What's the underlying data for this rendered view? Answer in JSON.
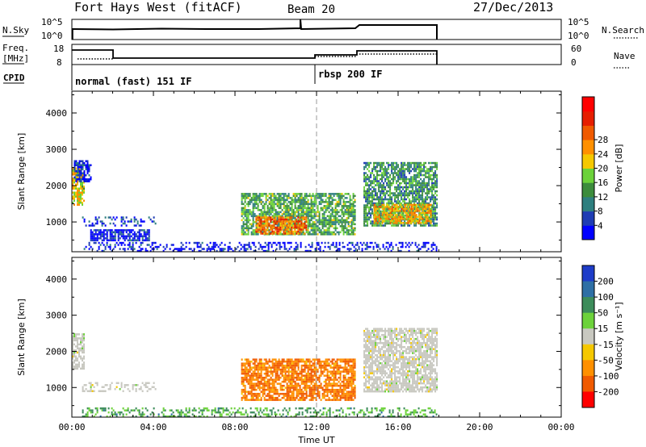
{
  "header": {
    "title": "Fort Hays West (fitACF)",
    "beam": "Beam 20",
    "date": "27/Dec/2013"
  },
  "panels": {
    "nsky_label": "N.Sky",
    "nsearch_label": "N.Search",
    "nsky_ticks": [
      "10^5",
      "10^0"
    ],
    "nsearch_ticks": [
      "10^5",
      "10^0"
    ],
    "freq_label_1": "Freq.",
    "freq_label_2": "[MHz]",
    "freq_ticks": [
      "18",
      "8"
    ],
    "nave_label": "Nave",
    "nave_ticks": [
      "60",
      "0"
    ],
    "cpid_label": "CPID",
    "cpid_1": "normal (fast) 151 IF",
    "cpid_2": "rbsp 200 IF"
  },
  "chart_data": [
    {
      "type": "heatmap",
      "title": "",
      "xlabel": "Time UT",
      "ylabel": "Slant Range [km]",
      "xlim": [
        0,
        24
      ],
      "ylim": [
        180,
        4600
      ],
      "x_ticks": [
        "00:00",
        "04:00",
        "08:00",
        "12:00",
        "16:00",
        "20:00",
        "00:00"
      ],
      "y_ticks": [
        "1000",
        "2000",
        "3000",
        "4000"
      ],
      "colorbar_label": "Power [dB]",
      "colorbar_ticks": [
        "4",
        "8",
        "12",
        "16",
        "20",
        "24",
        "28"
      ],
      "colorbar_colors": [
        "#0000ff",
        "#1e3cb4",
        "#2e7f7f",
        "#3c8c3c",
        "#6cd23a",
        "#f5c800",
        "#ff9000",
        "#f05a00",
        "#e61e00",
        "#ff0000"
      ],
      "regions": [
        {
          "t0": 0.0,
          "t1": 0.6,
          "r0": 1500,
          "r1": 2500,
          "level": 0.55
        },
        {
          "t0": 0.1,
          "t1": 0.9,
          "r0": 2100,
          "r1": 2700,
          "level": 0.05
        },
        {
          "t0": 0.5,
          "t1": 4.1,
          "r0": 900,
          "r1": 1150,
          "level": 0.1
        },
        {
          "t0": 0.9,
          "t1": 3.8,
          "r0": 500,
          "r1": 800,
          "level": 0.03
        },
        {
          "t0": 8.3,
          "t1": 13.9,
          "r0": 650,
          "r1": 1800,
          "level": 0.35
        },
        {
          "t0": 9.0,
          "t1": 11.5,
          "r0": 700,
          "r1": 1150,
          "level": 0.75
        },
        {
          "t0": 14.3,
          "t1": 17.9,
          "r0": 900,
          "r1": 2650,
          "level": 0.3
        },
        {
          "t0": 14.8,
          "t1": 17.6,
          "r0": 1000,
          "r1": 1500,
          "level": 0.6
        },
        {
          "t0": 0.5,
          "t1": 17.9,
          "r0": 200,
          "r1": 450,
          "level": 0.02
        }
      ]
    },
    {
      "type": "heatmap",
      "title": "",
      "xlabel": "Time UT",
      "ylabel": "Slant Range [km]",
      "xlim": [
        0,
        24
      ],
      "ylim": [
        180,
        4600
      ],
      "x_ticks": [
        "00:00",
        "04:00",
        "08:00",
        "12:00",
        "16:00",
        "20:00",
        "00:00"
      ],
      "y_ticks": [
        "1000",
        "2000",
        "3000",
        "4000"
      ],
      "colorbar_label": "Velocity [m s⁻¹]",
      "colorbar_ticks": [
        "200",
        "100",
        "50",
        "15",
        "-15",
        "-50",
        "-100",
        "-200"
      ],
      "colorbar_colors": [
        "#1e3cc8",
        "#2e6fa5",
        "#3c8c5a",
        "#6cd23a",
        "#c8c8c0",
        "#f5c800",
        "#ff9000",
        "#f05a00",
        "#ff0000"
      ],
      "regions": [
        {
          "t0": 0.0,
          "t1": 0.6,
          "r0": 1500,
          "r1": 2500,
          "level": 0.0
        },
        {
          "t0": 0.5,
          "t1": 4.1,
          "r0": 900,
          "r1": 1150,
          "level": 0.0
        },
        {
          "t0": 8.3,
          "t1": 13.9,
          "r0": 650,
          "r1": 1800,
          "level": -0.6
        },
        {
          "t0": 14.3,
          "t1": 17.9,
          "r0": 900,
          "r1": 2650,
          "level": 0.0
        },
        {
          "t0": 0.5,
          "t1": 17.9,
          "r0": 200,
          "r1": 450,
          "level": 0.4
        }
      ]
    }
  ]
}
